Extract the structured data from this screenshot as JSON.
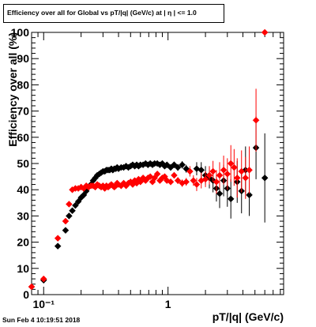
{
  "title": "Efficiency over all for Global vs pT/|q| (GeV/c) at | η | <= 1.0",
  "timestamp": "Sun Feb  4 10:19:51 2018",
  "chart_data": {
    "type": "scatter",
    "title": "Efficiency over all for Global vs pT/|q| (GeV/c) at | η | <= 1.0",
    "xlabel": "pT/|q| (GeV/c)",
    "ylabel": "Efficiency over all (%)",
    "xscale": "log",
    "xlim": [
      0.08,
      8.5
    ],
    "ylim": [
      0,
      100
    ],
    "x_tick_labels": [
      {
        "v": 0.1,
        "t": "10⁻¹"
      },
      {
        "v": 1,
        "t": "1"
      }
    ],
    "y_ticks": [
      0,
      10,
      20,
      30,
      40,
      50,
      60,
      70,
      80,
      90,
      100
    ],
    "series": [
      {
        "color": "#000000",
        "points": [
          [
            0.08,
            3.0,
            1.0
          ],
          [
            0.1,
            5.5,
            1.0
          ],
          [
            0.13,
            18.5,
            1.0
          ],
          [
            0.15,
            24.5,
            1.0
          ],
          [
            0.16,
            30.0,
            1.0
          ],
          [
            0.17,
            32.0,
            0.8
          ],
          [
            0.18,
            34.0,
            0.8
          ],
          [
            0.19,
            35.5,
            0.8
          ],
          [
            0.2,
            37.0,
            0.8
          ],
          [
            0.21,
            38.0,
            0.8
          ],
          [
            0.22,
            39.5,
            0.8
          ],
          [
            0.23,
            41.0,
            0.8
          ],
          [
            0.24,
            42.0,
            0.8
          ],
          [
            0.25,
            43.5,
            0.8
          ],
          [
            0.26,
            44.5,
            0.8
          ],
          [
            0.27,
            45.5,
            0.8
          ],
          [
            0.28,
            46.0,
            0.8
          ],
          [
            0.29,
            46.5,
            0.8
          ],
          [
            0.3,
            47.0,
            0.8
          ],
          [
            0.31,
            47.0,
            0.8
          ],
          [
            0.32,
            47.5,
            0.8
          ],
          [
            0.33,
            47.5,
            0.8
          ],
          [
            0.34,
            47.5,
            0.8
          ],
          [
            0.35,
            48.0,
            0.8
          ],
          [
            0.36,
            47.5,
            0.8
          ],
          [
            0.37,
            48.0,
            0.8
          ],
          [
            0.38,
            48.0,
            0.8
          ],
          [
            0.39,
            48.5,
            0.8
          ],
          [
            0.4,
            48.0,
            0.8
          ],
          [
            0.42,
            48.5,
            0.8
          ],
          [
            0.44,
            48.5,
            0.8
          ],
          [
            0.46,
            49.0,
            0.8
          ],
          [
            0.48,
            48.5,
            0.8
          ],
          [
            0.5,
            49.0,
            0.8
          ],
          [
            0.52,
            49.5,
            0.8
          ],
          [
            0.54,
            49.0,
            0.8
          ],
          [
            0.56,
            49.5,
            0.8
          ],
          [
            0.58,
            49.0,
            0.8
          ],
          [
            0.6,
            49.5,
            0.8
          ],
          [
            0.63,
            49.5,
            0.8
          ],
          [
            0.66,
            50.0,
            0.8
          ],
          [
            0.69,
            49.5,
            0.8
          ],
          [
            0.72,
            50.0,
            0.9
          ],
          [
            0.75,
            49.5,
            0.9
          ],
          [
            0.78,
            50.0,
            0.9
          ],
          [
            0.82,
            50.0,
            0.9
          ],
          [
            0.86,
            49.5,
            1.0
          ],
          [
            0.9,
            50.0,
            1.0
          ],
          [
            0.94,
            49.0,
            1.0
          ],
          [
            0.98,
            49.5,
            1.0
          ],
          [
            1.05,
            48.5,
            1.2
          ],
          [
            1.12,
            49.5,
            1.2
          ],
          [
            1.2,
            48.5,
            1.3
          ],
          [
            1.3,
            49.5,
            1.4
          ],
          [
            1.4,
            48.0,
            1.5
          ],
          [
            1.7,
            48.0,
            2.5
          ],
          [
            1.85,
            47.5,
            3.0
          ],
          [
            2.0,
            45.5,
            3.5
          ],
          [
            2.15,
            44.5,
            4.0
          ],
          [
            2.3,
            43.5,
            4.5
          ],
          [
            2.45,
            40.5,
            5.0
          ],
          [
            2.6,
            38.5,
            5.5
          ],
          [
            2.8,
            43.5,
            6.0
          ],
          [
            3.0,
            40.5,
            7.0
          ],
          [
            3.2,
            36.5,
            7.5
          ],
          [
            3.6,
            43.0,
            8.0
          ],
          [
            3.9,
            39.5,
            8.5
          ],
          [
            4.2,
            47.5,
            9.0
          ],
          [
            4.5,
            38.0,
            8.0
          ],
          [
            5.1,
            56.0,
            12.0
          ],
          [
            6.0,
            44.5,
            17.0
          ]
        ]
      },
      {
        "color": "#ff0000",
        "points": [
          [
            0.08,
            3.0,
            1.0
          ],
          [
            0.1,
            6.0,
            1.0
          ],
          [
            0.13,
            21.5,
            1.0
          ],
          [
            0.15,
            28.0,
            1.0
          ],
          [
            0.16,
            34.5,
            1.0
          ],
          [
            0.17,
            40.0,
            0.8
          ],
          [
            0.18,
            40.5,
            0.8
          ],
          [
            0.19,
            40.5,
            0.8
          ],
          [
            0.2,
            41.0,
            0.8
          ],
          [
            0.21,
            40.5,
            0.8
          ],
          [
            0.22,
            41.5,
            0.8
          ],
          [
            0.23,
            41.0,
            0.8
          ],
          [
            0.24,
            41.5,
            0.8
          ],
          [
            0.25,
            41.5,
            0.8
          ],
          [
            0.26,
            41.0,
            0.8
          ],
          [
            0.27,
            42.0,
            0.8
          ],
          [
            0.28,
            41.5,
            0.8
          ],
          [
            0.29,
            41.0,
            0.8
          ],
          [
            0.3,
            41.5,
            0.8
          ],
          [
            0.31,
            40.5,
            0.8
          ],
          [
            0.32,
            41.5,
            0.8
          ],
          [
            0.33,
            41.0,
            0.8
          ],
          [
            0.34,
            41.5,
            0.8
          ],
          [
            0.35,
            42.0,
            0.8
          ],
          [
            0.36,
            41.5,
            0.8
          ],
          [
            0.37,
            41.0,
            0.8
          ],
          [
            0.38,
            41.5,
            0.8
          ],
          [
            0.39,
            42.5,
            0.8
          ],
          [
            0.4,
            42.0,
            0.8
          ],
          [
            0.42,
            41.5,
            0.8
          ],
          [
            0.44,
            42.5,
            0.8
          ],
          [
            0.46,
            41.5,
            0.8
          ],
          [
            0.48,
            42.5,
            0.8
          ],
          [
            0.5,
            43.0,
            0.8
          ],
          [
            0.52,
            42.0,
            0.8
          ],
          [
            0.54,
            43.5,
            0.8
          ],
          [
            0.56,
            42.5,
            0.8
          ],
          [
            0.58,
            44.0,
            0.8
          ],
          [
            0.6,
            43.0,
            0.8
          ],
          [
            0.63,
            44.5,
            0.8
          ],
          [
            0.66,
            43.5,
            0.8
          ],
          [
            0.69,
            44.5,
            0.8
          ],
          [
            0.72,
            45.0,
            0.9
          ],
          [
            0.75,
            43.0,
            0.9
          ],
          [
            0.78,
            44.5,
            0.9
          ],
          [
            0.82,
            46.0,
            0.9
          ],
          [
            0.86,
            43.5,
            1.0
          ],
          [
            0.9,
            44.5,
            1.0
          ],
          [
            0.94,
            45.0,
            1.0
          ],
          [
            0.98,
            43.5,
            1.0
          ],
          [
            1.05,
            43.0,
            1.2
          ],
          [
            1.12,
            45.5,
            1.2
          ],
          [
            1.2,
            43.5,
            1.3
          ],
          [
            1.3,
            42.5,
            1.4
          ],
          [
            1.4,
            43.0,
            1.5
          ],
          [
            1.5,
            47.0,
            2.0
          ],
          [
            1.6,
            43.5,
            2.0
          ],
          [
            1.7,
            42.0,
            2.5
          ],
          [
            1.85,
            43.5,
            3.0
          ],
          [
            2.0,
            44.0,
            3.0
          ],
          [
            2.15,
            45.5,
            3.5
          ],
          [
            2.3,
            47.0,
            4.0
          ],
          [
            2.45,
            43.0,
            4.5
          ],
          [
            2.6,
            45.5,
            5.0
          ],
          [
            2.8,
            47.5,
            5.5
          ],
          [
            3.0,
            46.0,
            6.0
          ],
          [
            3.2,
            50.0,
            7.0
          ],
          [
            3.4,
            48.5,
            7.0
          ],
          [
            3.6,
            44.5,
            7.5
          ],
          [
            3.9,
            47.0,
            8.0
          ],
          [
            4.2,
            44.5,
            8.0
          ],
          [
            4.5,
            47.5,
            9.0
          ],
          [
            5.1,
            66.5,
            12.0
          ],
          [
            6.0,
            100.0,
            0.0
          ]
        ]
      }
    ]
  }
}
